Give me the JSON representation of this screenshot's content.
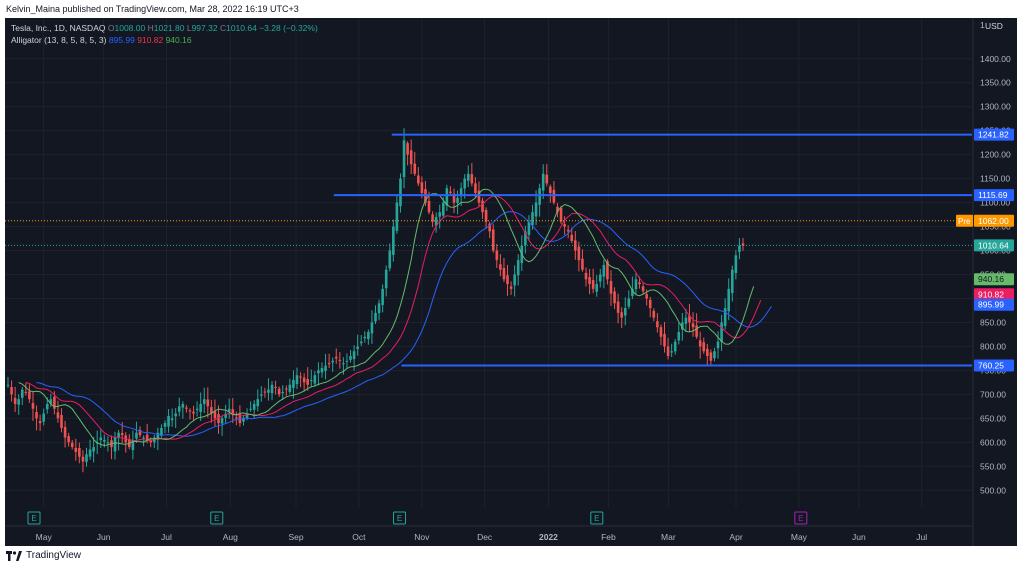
{
  "publisher": "Kelvin_Maina published on TradingView.com, Mar 28, 2022 16:19 UTC+3",
  "legend": {
    "symbol": "Tesla, Inc., 1D, NASDAQ",
    "o_label": "O",
    "o": "1008.00",
    "h_label": "H",
    "h": "1021.80",
    "l_label": "L",
    "l": "997.32",
    "c_label": "C",
    "c": "1010.64",
    "change": "−3.28 (−0.32%)",
    "alligator_label": "Alligator (13, 8, 5, 8, 5, 3)",
    "jaw": "895.99",
    "teeth": "910.82",
    "lips": "940.16"
  },
  "currency": "USD",
  "footer": "TradingView",
  "colors": {
    "background": "#131722",
    "up": "#26a69a",
    "down": "#ef5350",
    "jaw": "#2962ff",
    "teeth": "#e91e63",
    "lips": "#66bb6a",
    "hline": "#2962ff",
    "pre": "#ff9800",
    "earnings": "#26a69a",
    "earnings_future": "#9c27b0"
  },
  "chart_data": {
    "type": "candlestick",
    "title": "Tesla, Inc., 1D, NASDAQ",
    "ylabel": "USD",
    "ylim": [
      463,
      1485
    ],
    "y_ticks": [
      500,
      550,
      600,
      650,
      700,
      750,
      800,
      850,
      900,
      950,
      1000,
      1050,
      1100,
      1150,
      1200,
      1250,
      1300,
      1350,
      1400
    ],
    "y_tick_labels": [
      "500.00",
      "550.00",
      "600.00",
      "650.00",
      "700.00",
      "750.00",
      "800.00",
      "850.00",
      "900.00",
      "950.00",
      "1000.00",
      "1050.00",
      "1100.00",
      "1150.00",
      "1200.00",
      "1250.00",
      "1300.00",
      "1350.00",
      "1400.00"
    ],
    "y_top_label": "1",
    "x_labels": [
      {
        "label": "May",
        "pos": 0.04
      },
      {
        "label": "Jun",
        "pos": 0.102
      },
      {
        "label": "Jul",
        "pos": 0.167
      },
      {
        "label": "Aug",
        "pos": 0.233
      },
      {
        "label": "Sep",
        "pos": 0.301
      },
      {
        "label": "Oct",
        "pos": 0.366
      },
      {
        "label": "Nov",
        "pos": 0.431
      },
      {
        "label": "Dec",
        "pos": 0.496
      },
      {
        "label": "2022",
        "pos": 0.562
      },
      {
        "label": "Feb",
        "pos": 0.624
      },
      {
        "label": "Mar",
        "pos": 0.686
      },
      {
        "label": "Apr",
        "pos": 0.756
      },
      {
        "label": "May",
        "pos": 0.821
      },
      {
        "label": "Jun",
        "pos": 0.883
      },
      {
        "label": "Jul",
        "pos": 0.948
      }
    ],
    "closes": [
      720,
      700,
      680,
      690,
      710,
      705,
      690,
      670,
      650,
      640,
      660,
      680,
      690,
      670,
      650,
      630,
      610,
      600,
      590,
      580,
      570,
      560,
      575,
      585,
      590,
      600,
      610,
      605,
      600,
      590,
      610,
      620,
      615,
      600,
      590,
      605,
      620,
      615,
      610,
      605,
      600,
      610,
      620,
      630,
      640,
      655,
      650,
      660,
      675,
      680,
      670,
      665,
      660,
      670,
      680,
      690,
      675,
      660,
      650,
      640,
      650,
      660,
      670,
      660,
      650,
      640,
      650,
      660,
      670,
      680,
      690,
      700,
      705,
      710,
      720,
      715,
      700,
      705,
      710,
      720,
      730,
      740,
      735,
      725,
      720,
      730,
      740,
      750,
      755,
      760,
      765,
      770,
      775,
      770,
      765,
      770,
      780,
      790,
      800,
      810,
      820,
      830,
      850,
      870,
      890,
      920,
      960,
      1000,
      1050,
      1100,
      1150,
      1230,
      1200,
      1180,
      1160,
      1140,
      1120,
      1100,
      1080,
      1060,
      1070,
      1080,
      1100,
      1130,
      1120,
      1100,
      1110,
      1130,
      1150,
      1160,
      1140,
      1120,
      1100,
      1080,
      1060,
      1040,
      1000,
      980,
      960,
      940,
      930,
      920,
      950,
      980,
      1010,
      1040,
      1060,
      1080,
      1100,
      1130,
      1160,
      1140,
      1120,
      1100,
      1080,
      1060,
      1050,
      1040,
      1020,
      1000,
      980,
      960,
      940,
      930,
      920,
      930,
      950,
      970,
      940,
      910,
      890,
      870,
      860,
      880,
      900,
      920,
      940,
      930,
      915,
      900,
      880,
      860,
      840,
      820,
      800,
      780,
      790,
      810,
      830,
      850,
      860,
      850,
      840,
      820,
      800,
      790,
      780,
      770,
      790,
      810,
      850,
      880,
      920,
      960,
      990,
      1010,
      1010
    ],
    "alligator": {
      "jaw_label": "895.99",
      "teeth_label": "910.82",
      "lips_label": "940.16"
    },
    "horizontal_lines": [
      {
        "value": 1241.82,
        "label": "1241.82",
        "x_start": 0.4
      },
      {
        "value": 1115.69,
        "label": "1115.69",
        "x_start": 0.34
      },
      {
        "value": 760.25,
        "label": "760.25",
        "x_start": 0.41
      }
    ],
    "pre": {
      "label": "Pre",
      "value": 1062.0,
      "value_label": "1062.00"
    },
    "last": {
      "value": 1010.64,
      "label": "1010.64"
    },
    "markers": [
      {
        "pos": 0.03,
        "label": "E"
      },
      {
        "pos": 0.219,
        "label": "E"
      },
      {
        "pos": 0.408,
        "label": "E"
      },
      {
        "pos": 0.612,
        "label": "E"
      },
      {
        "pos": 0.823,
        "label": "E",
        "future": true
      }
    ]
  }
}
